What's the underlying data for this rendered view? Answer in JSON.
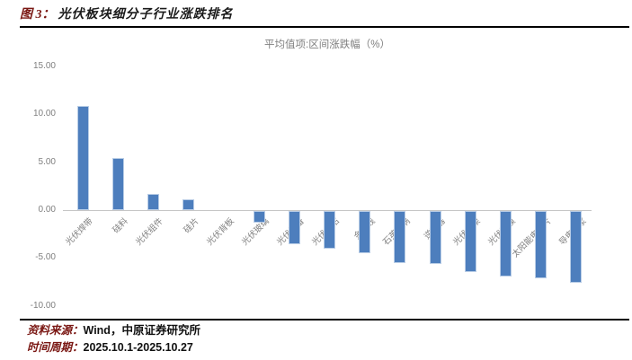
{
  "header": {
    "figure_label": "图 3：",
    "title": "光伏板块细分子行业涨跌排名"
  },
  "chart_data": {
    "type": "bar",
    "title": "平均值项:区间涨跌幅（%）",
    "categories": [
      "光伏焊带",
      "硅料",
      "光伏组件",
      "硅片",
      "光伏背板",
      "光伏玻璃",
      "光伏设备",
      "光伏电站",
      "金刚线",
      "石英坩埚",
      "逆变器",
      "光伏支架",
      "光伏胶膜",
      "太阳能电池片",
      "导电银浆"
    ],
    "values": [
      10.9,
      5.4,
      1.7,
      1.1,
      0.0,
      -1.2,
      -3.5,
      -3.9,
      -4.4,
      -5.4,
      -5.5,
      -6.4,
      -6.8,
      -7.0,
      -7.5
    ],
    "xlabel": "",
    "ylabel": "",
    "ylim": [
      -10,
      15
    ],
    "ytick_labels": [
      "15.00",
      "10.00",
      "5.00",
      "0.00",
      "-5.00",
      "-10.00"
    ],
    "grid": false,
    "legend": "none",
    "bar_color": "#4d7ebd",
    "axis_color": "#c6c6c6",
    "label_color": "#7f7f7f"
  },
  "footer": {
    "source_label": "资料来源：",
    "source_value": "Wind，中原证券研究所",
    "period_label": "时间周期：",
    "period_value": "2025.10.1-2025.10.27"
  },
  "colors": {
    "accent_maroon": "#7a1713",
    "bar_blue": "#4d7ebd",
    "text_gray": "#7f7f7f"
  }
}
